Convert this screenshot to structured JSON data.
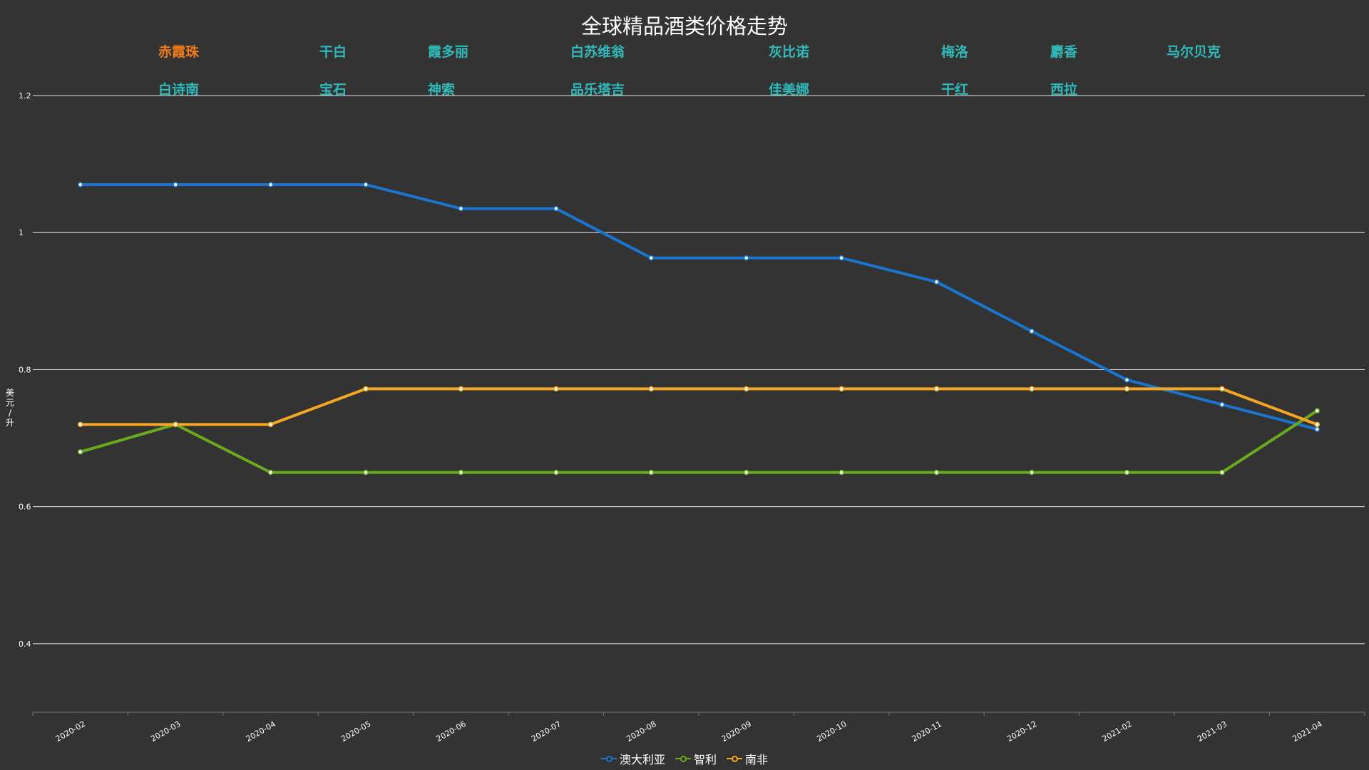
{
  "chart_data": {
    "type": "line",
    "title": "全球精品酒类价格走势",
    "ylabel": "美元/升",
    "xlabel": "",
    "ylim": [
      0.3,
      1.2
    ],
    "y_ticks": [
      "0.4",
      "0.6",
      "0.8",
      "1",
      "1.2"
    ],
    "grid": true,
    "legend_position": "bottom",
    "categories": [
      "2020-02",
      "2020-03",
      "2020-04",
      "2020-05",
      "2020-06",
      "2020-07",
      "2020-08",
      "2020-09",
      "2020-10",
      "2020-11",
      "2020-12",
      "2021-02",
      "2021-03",
      "2021-04"
    ],
    "series": [
      {
        "name": "澳大利亚",
        "color": "#1a75d1",
        "values": [
          1.07,
          1.07,
          1.07,
          1.07,
          1.035,
          1.035,
          0.963,
          0.963,
          0.963,
          0.928,
          0.856,
          0.785,
          0.749,
          0.713
        ]
      },
      {
        "name": "智利",
        "color": "#6aaa1c",
        "values": [
          0.68,
          0.72,
          0.65,
          0.65,
          0.65,
          0.65,
          0.65,
          0.65,
          0.65,
          0.65,
          0.65,
          0.65,
          0.65,
          0.74
        ]
      },
      {
        "name": "南非",
        "color": "#f5a623",
        "values": [
          0.72,
          0.72,
          0.72,
          0.772,
          0.772,
          0.772,
          0.772,
          0.772,
          0.772,
          0.772,
          0.772,
          0.772,
          0.772,
          0.72
        ]
      }
    ]
  },
  "wine_filter": {
    "active_color": "#f07a1a",
    "inactive_color": "#2fb9b9",
    "items": [
      {
        "label": "赤霞珠",
        "active": true
      },
      {
        "label": "干白",
        "active": false
      },
      {
        "label": "霞多丽",
        "active": false
      },
      {
        "label": "白苏维翁",
        "active": false
      },
      {
        "label": "灰比诺",
        "active": false
      },
      {
        "label": "梅洛",
        "active": false
      },
      {
        "label": "麝香",
        "active": false
      },
      {
        "label": "马尔贝克",
        "active": false
      },
      {
        "label": "白诗南",
        "active": false
      },
      {
        "label": "宝石",
        "active": false
      },
      {
        "label": "神索",
        "active": false
      },
      {
        "label": "品乐塔吉",
        "active": false
      },
      {
        "label": "佳美娜",
        "active": false
      },
      {
        "label": "干红",
        "active": false
      },
      {
        "label": "西拉",
        "active": false
      }
    ]
  }
}
